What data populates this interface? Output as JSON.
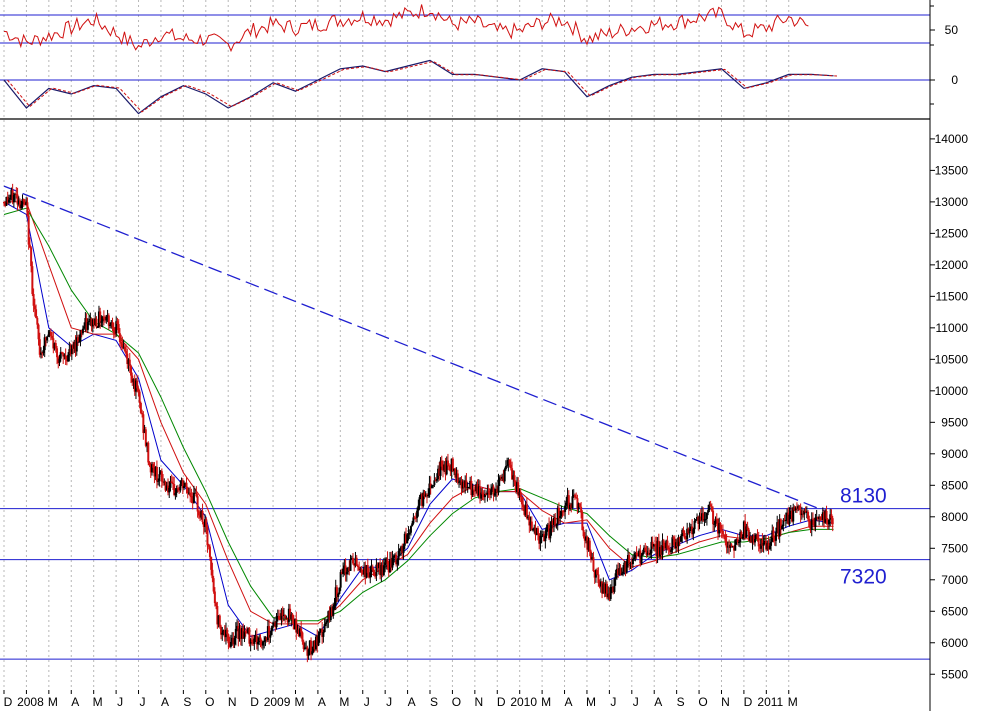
{
  "chart_data": {
    "type": "line",
    "price_axis": {
      "ylim": [
        5250,
        14300
      ],
      "ticks": [
        5500,
        6000,
        6500,
        7000,
        7500,
        8000,
        8500,
        9000,
        9500,
        10000,
        10500,
        11000,
        11500,
        12000,
        12500,
        13000,
        13500,
        14000
      ]
    },
    "oscillator_axis": {
      "ticks": [
        "50"
      ]
    },
    "momentum_axis": {
      "ticks": [
        "0"
      ]
    },
    "x_axis": {
      "start": 0,
      "end": 41.3,
      "month_labels": [
        {
          "t": 0,
          "label": "D"
        },
        {
          "t": 1,
          "label": "2008"
        },
        {
          "t": 2,
          "label": "M"
        },
        {
          "t": 3,
          "label": "A"
        },
        {
          "t": 4,
          "label": "M"
        },
        {
          "t": 5,
          "label": "J"
        },
        {
          "t": 6,
          "label": "J"
        },
        {
          "t": 7,
          "label": "A"
        },
        {
          "t": 8,
          "label": "S"
        },
        {
          "t": 9,
          "label": "O"
        },
        {
          "t": 10,
          "label": "N"
        },
        {
          "t": 11,
          "label": "D"
        },
        {
          "t": 12,
          "label": "2009"
        },
        {
          "t": 13,
          "label": "M"
        },
        {
          "t": 14,
          "label": "A"
        },
        {
          "t": 15,
          "label": "M"
        },
        {
          "t": 16,
          "label": "J"
        },
        {
          "t": 17,
          "label": "J"
        },
        {
          "t": 18,
          "label": "A"
        },
        {
          "t": 19,
          "label": "S"
        },
        {
          "t": 20,
          "label": "O"
        },
        {
          "t": 21,
          "label": "N"
        },
        {
          "t": 22,
          "label": "D"
        },
        {
          "t": 23,
          "label": "2010"
        },
        {
          "t": 24,
          "label": "M"
        },
        {
          "t": 25,
          "label": "A"
        },
        {
          "t": 26,
          "label": "M"
        },
        {
          "t": 27,
          "label": "J"
        },
        {
          "t": 28,
          "label": "J"
        },
        {
          "t": 29,
          "label": "A"
        },
        {
          "t": 30,
          "label": "S"
        },
        {
          "t": 31,
          "label": "O"
        },
        {
          "t": 32,
          "label": "N"
        },
        {
          "t": 33,
          "label": "D"
        },
        {
          "t": 34,
          "label": "2011"
        },
        {
          "t": 35,
          "label": "M"
        }
      ]
    },
    "levels": [
      {
        "value": 8130,
        "label": "8130"
      },
      {
        "value": 7320,
        "label": "7320"
      },
      {
        "value": 5740,
        "label": ""
      }
    ],
    "trendline": {
      "from": [
        0,
        13250
      ],
      "to": [
        36.7,
        8080
      ]
    },
    "price_series": [
      [
        0,
        13000
      ],
      [
        0.5,
        13100
      ],
      [
        1,
        12900
      ],
      [
        1.3,
        11500
      ],
      [
        1.6,
        10600
      ],
      [
        2,
        10900
      ],
      [
        2.5,
        10500
      ],
      [
        3,
        10600
      ],
      [
        3.5,
        11000
      ],
      [
        4.5,
        11200
      ],
      [
        5,
        11000
      ],
      [
        5.5,
        10500
      ],
      [
        6,
        9900
      ],
      [
        6.5,
        8800
      ],
      [
        7,
        8600
      ],
      [
        7.5,
        8400
      ],
      [
        8,
        8500
      ],
      [
        8.5,
        8300
      ],
      [
        9,
        7800
      ],
      [
        9.5,
        6400
      ],
      [
        10,
        6000
      ],
      [
        10.5,
        6200
      ],
      [
        11,
        6100
      ],
      [
        11.5,
        6000
      ],
      [
        12,
        6300
      ],
      [
        12.5,
        6500
      ],
      [
        13,
        6300
      ],
      [
        13.5,
        5900
      ],
      [
        14,
        6000
      ],
      [
        14.5,
        6400
      ],
      [
        15,
        7000
      ],
      [
        15.5,
        7300
      ],
      [
        16,
        7150
      ],
      [
        16.5,
        7100
      ],
      [
        17,
        7200
      ],
      [
        17.5,
        7300
      ],
      [
        18,
        7700
      ],
      [
        18.5,
        8200
      ],
      [
        19,
        8500
      ],
      [
        19.5,
        8800
      ],
      [
        20,
        8800
      ],
      [
        20.5,
        8500
      ],
      [
        21,
        8400
      ],
      [
        21.5,
        8350
      ],
      [
        22,
        8500
      ],
      [
        22.5,
        8800
      ],
      [
        23,
        8300
      ],
      [
        23.5,
        7900
      ],
      [
        24,
        7600
      ],
      [
        24.5,
        7900
      ],
      [
        25,
        8200
      ],
      [
        25.5,
        8300
      ],
      [
        26,
        7600
      ],
      [
        26.5,
        6900
      ],
      [
        27,
        6800
      ],
      [
        27.5,
        7200
      ],
      [
        28,
        7300
      ],
      [
        28.5,
        7400
      ],
      [
        29,
        7500
      ],
      [
        29.5,
        7500
      ],
      [
        30,
        7600
      ],
      [
        30.5,
        7800
      ],
      [
        31,
        7900
      ],
      [
        31.5,
        8100
      ],
      [
        32,
        7700
      ],
      [
        32.5,
        7500
      ],
      [
        33,
        7800
      ],
      [
        33.5,
        7600
      ],
      [
        34,
        7500
      ],
      [
        34.5,
        7800
      ],
      [
        35,
        8000
      ],
      [
        35.5,
        8100
      ],
      [
        36,
        7900
      ],
      [
        36.5,
        8000
      ],
      [
        37,
        7950
      ]
    ],
    "moving_averages": [
      {
        "color": "#0000cc",
        "points": [
          [
            0,
            13000
          ],
          [
            1,
            12800
          ],
          [
            2,
            11000
          ],
          [
            3,
            10700
          ],
          [
            4,
            10900
          ],
          [
            5,
            10800
          ],
          [
            6,
            10200
          ],
          [
            7,
            8900
          ],
          [
            8,
            8500
          ],
          [
            9,
            8000
          ],
          [
            10,
            6600
          ],
          [
            11,
            6100
          ],
          [
            12,
            6200
          ],
          [
            13,
            6300
          ],
          [
            14,
            6100
          ],
          [
            15,
            6700
          ],
          [
            16,
            7200
          ],
          [
            17,
            7200
          ],
          [
            18,
            7500
          ],
          [
            19,
            8200
          ],
          [
            20,
            8600
          ],
          [
            21,
            8500
          ],
          [
            22,
            8400
          ],
          [
            23,
            8400
          ],
          [
            24,
            7800
          ],
          [
            25,
            7900
          ],
          [
            26,
            7900
          ],
          [
            27,
            7000
          ],
          [
            28,
            7150
          ],
          [
            29,
            7400
          ],
          [
            30,
            7550
          ],
          [
            31,
            7700
          ],
          [
            32,
            7800
          ],
          [
            33,
            7700
          ],
          [
            34,
            7700
          ],
          [
            35,
            7850
          ],
          [
            36,
            7950
          ],
          [
            37,
            7900
          ]
        ]
      },
      {
        "color": "#d01010",
        "points": [
          [
            0,
            13000
          ],
          [
            1,
            13000
          ],
          [
            2,
            12000
          ],
          [
            3,
            11000
          ],
          [
            4,
            10900
          ],
          [
            5,
            10900
          ],
          [
            6,
            10500
          ],
          [
            7,
            9500
          ],
          [
            8,
            8700
          ],
          [
            9,
            8200
          ],
          [
            10,
            7300
          ],
          [
            11,
            6500
          ],
          [
            12,
            6300
          ],
          [
            13,
            6300
          ],
          [
            14,
            6300
          ],
          [
            15,
            6600
          ],
          [
            16,
            7000
          ],
          [
            17,
            7200
          ],
          [
            18,
            7400
          ],
          [
            19,
            7900
          ],
          [
            20,
            8300
          ],
          [
            21,
            8500
          ],
          [
            22,
            8400
          ],
          [
            23,
            8400
          ],
          [
            24,
            8100
          ],
          [
            25,
            7900
          ],
          [
            26,
            7950
          ],
          [
            27,
            7500
          ],
          [
            28,
            7200
          ],
          [
            29,
            7300
          ],
          [
            30,
            7450
          ],
          [
            31,
            7600
          ],
          [
            32,
            7700
          ],
          [
            33,
            7650
          ],
          [
            34,
            7650
          ],
          [
            35,
            7750
          ],
          [
            36,
            7850
          ],
          [
            37,
            7850
          ]
        ]
      },
      {
        "color": "#008800",
        "points": [
          [
            0,
            12800
          ],
          [
            1,
            12900
          ],
          [
            2,
            12300
          ],
          [
            3,
            11600
          ],
          [
            4,
            11100
          ],
          [
            5,
            10900
          ],
          [
            6,
            10600
          ],
          [
            7,
            9900
          ],
          [
            8,
            9100
          ],
          [
            9,
            8400
          ],
          [
            10,
            7600
          ],
          [
            11,
            6900
          ],
          [
            12,
            6400
          ],
          [
            13,
            6350
          ],
          [
            14,
            6350
          ],
          [
            15,
            6500
          ],
          [
            16,
            6800
          ],
          [
            17,
            7000
          ],
          [
            18,
            7300
          ],
          [
            19,
            7700
          ],
          [
            20,
            8050
          ],
          [
            21,
            8300
          ],
          [
            22,
            8400
          ],
          [
            23,
            8450
          ],
          [
            24,
            8300
          ],
          [
            25,
            8150
          ],
          [
            26,
            8050
          ],
          [
            27,
            7700
          ],
          [
            28,
            7400
          ],
          [
            29,
            7350
          ],
          [
            30,
            7400
          ],
          [
            31,
            7500
          ],
          [
            32,
            7600
          ],
          [
            33,
            7600
          ],
          [
            34,
            7650
          ],
          [
            35,
            7750
          ],
          [
            36,
            7800
          ],
          [
            37,
            7800
          ]
        ]
      }
    ],
    "oscillator_series": [
      [
        0,
        52
      ],
      [
        1,
        42
      ],
      [
        2,
        48
      ],
      [
        3,
        55
      ],
      [
        4,
        62
      ],
      [
        5,
        50
      ],
      [
        6,
        38
      ],
      [
        7,
        50
      ],
      [
        8,
        45
      ],
      [
        9,
        45
      ],
      [
        10,
        40
      ],
      [
        11,
        52
      ],
      [
        12,
        58
      ],
      [
        13,
        55
      ],
      [
        14,
        58
      ],
      [
        15,
        62
      ],
      [
        16,
        65
      ],
      [
        17,
        62
      ],
      [
        18,
        67
      ],
      [
        19,
        72
      ],
      [
        20,
        58
      ],
      [
        21,
        60
      ],
      [
        22,
        52
      ],
      [
        23,
        52
      ],
      [
        24,
        60
      ],
      [
        25,
        62
      ],
      [
        26,
        45
      ],
      [
        27,
        50
      ],
      [
        28,
        55
      ],
      [
        29,
        58
      ],
      [
        30,
        60
      ],
      [
        31,
        64
      ],
      [
        32,
        67
      ],
      [
        33,
        50
      ],
      [
        34,
        55
      ],
      [
        35,
        64
      ],
      [
        36,
        55
      ]
    ],
    "momentum_series": [
      [
        0,
        0
      ],
      [
        1,
        -100
      ],
      [
        2,
        -30
      ],
      [
        3,
        -50
      ],
      [
        4,
        -20
      ],
      [
        5,
        -30
      ],
      [
        6,
        -120
      ],
      [
        7,
        -60
      ],
      [
        8,
        -20
      ],
      [
        9,
        -50
      ],
      [
        10,
        -100
      ],
      [
        11,
        -60
      ],
      [
        12,
        -10
      ],
      [
        13,
        -40
      ],
      [
        14,
        0
      ],
      [
        15,
        40
      ],
      [
        16,
        50
      ],
      [
        17,
        30
      ],
      [
        18,
        50
      ],
      [
        19,
        70
      ],
      [
        20,
        20
      ],
      [
        21,
        20
      ],
      [
        22,
        10
      ],
      [
        23,
        0
      ],
      [
        24,
        40
      ],
      [
        25,
        30
      ],
      [
        26,
        -60
      ],
      [
        27,
        -20
      ],
      [
        28,
        10
      ],
      [
        29,
        20
      ],
      [
        30,
        20
      ],
      [
        31,
        30
      ],
      [
        32,
        40
      ],
      [
        33,
        -30
      ],
      [
        34,
        -10
      ],
      [
        35,
        20
      ],
      [
        36,
        20
      ],
      [
        37,
        15
      ]
    ]
  }
}
